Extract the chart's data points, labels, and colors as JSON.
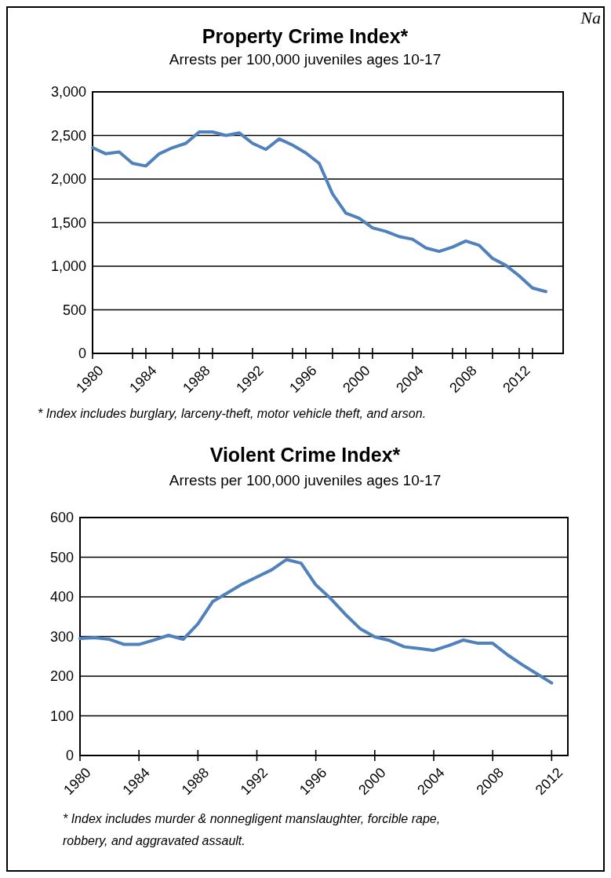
{
  "chart_data": [
    {
      "type": "line",
      "title": "Property Crime Index*",
      "subtitle": "Arrests per 100,000 juveniles ages 10-17",
      "annotations": [
        "* Index includes burglary,  larceny-theft, motor vehicle theft, and arson.",
        "Na"
      ],
      "x": [
        1980,
        1981,
        1982,
        1983,
        1984,
        1985,
        1986,
        1987,
        1988,
        1989,
        1990,
        1991,
        1992,
        1993,
        1994,
        1995,
        1996,
        1997,
        1998,
        1999,
        2000,
        2001,
        2002,
        2003,
        2004,
        2005,
        2006,
        2007,
        2008,
        2009,
        2010,
        2011,
        2012,
        2013,
        2014
      ],
      "series": [
        {
          "color": "#4f81bd",
          "values": [
            2360,
            2290,
            2310,
            2180,
            2150,
            2290,
            2360,
            2410,
            2540,
            2540,
            2500,
            2530,
            2410,
            2340,
            2460,
            2390,
            2300,
            2180,
            1830,
            1610,
            1550,
            1440,
            1400,
            1340,
            1310,
            1210,
            1170,
            1220,
            1290,
            1240,
            1090,
            1010,
            890,
            750,
            710
          ]
        }
      ],
      "xlim": [
        1980,
        2015.3
      ],
      "xticks": [
        1980,
        {
          "value": 1983,
          "label": null
        },
        1984,
        {
          "value": 1986,
          "label": null
        },
        1988,
        {
          "value": 1989,
          "label": null
        },
        1992,
        {
          "value": 1995,
          "label": null
        },
        1996,
        {
          "value": 1998,
          "label": null
        },
        2000,
        {
          "value": 2001,
          "label": null
        },
        2004,
        {
          "value": 2007,
          "label": null
        },
        2008,
        {
          "value": 2010,
          "label": null
        },
        2012,
        {
          "value": 2013,
          "label": null
        }
      ],
      "ylim": [
        0,
        3000
      ],
      "yticks": [
        {
          "value": 0,
          "label": "0"
        },
        {
          "value": 500,
          "label": "500"
        },
        {
          "value": 1000,
          "label": "1,000"
        },
        {
          "value": 1500,
          "label": "1,500"
        },
        {
          "value": 2000,
          "label": "2,000"
        },
        {
          "value": 2500,
          "label": "2,500"
        },
        {
          "value": 3000,
          "label": "3,000"
        }
      ],
      "grid": "y",
      "marker": "none",
      "line_style": "solid"
    },
    {
      "type": "line",
      "title": "Violent Crime Index*",
      "subtitle": "Arrests per 100,000 juveniles ages 10-17",
      "annotations": [
        "* Index includes murder & nonnegligent manslaughter, forcible rape,",
        "robbery, and aggravated assault."
      ],
      "x": [
        1980,
        1981,
        1982,
        1983,
        1984,
        1985,
        1986,
        1987,
        1988,
        1989,
        1990,
        1991,
        1992,
        1993,
        1994,
        1995,
        1996,
        1997,
        1998,
        1999,
        2000,
        2001,
        2002,
        2003,
        2004,
        2005,
        2006,
        2007,
        2008,
        2009,
        2010,
        2011,
        2012
      ],
      "series": [
        {
          "color": "#4f81bd",
          "values": [
            295,
            297,
            293,
            280,
            280,
            291,
            303,
            293,
            332,
            388,
            410,
            432,
            450,
            468,
            494,
            485,
            430,
            396,
            356,
            320,
            299,
            290,
            274,
            270,
            265,
            277,
            291,
            283,
            283,
            254,
            229,
            206,
            183
          ]
        }
      ],
      "xlim": [
        1980,
        2013.1
      ],
      "xticks": [
        1980,
        1984,
        1988,
        1992,
        1996,
        2000,
        2004,
        2008,
        2012
      ],
      "ylim": [
        0,
        600
      ],
      "yticks": [
        0,
        100,
        200,
        300,
        400,
        500,
        600
      ],
      "grid": "y",
      "marker": "none",
      "line_style": "solid"
    }
  ]
}
